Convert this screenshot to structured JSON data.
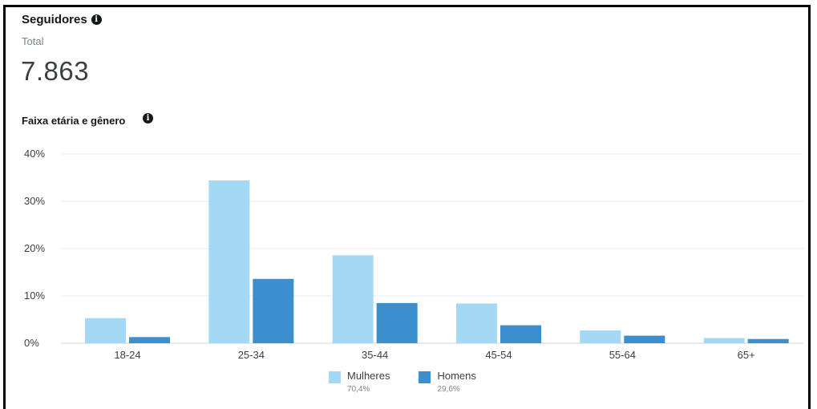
{
  "header": {
    "title": "Seguidores",
    "total_label": "Total",
    "total_value": "7.863"
  },
  "icons": {
    "info": "info-icon",
    "info_glyph": "i"
  },
  "chart_data": {
    "type": "bar",
    "title": "Faixa etária e gênero",
    "categories": [
      "18-24",
      "25-34",
      "35-44",
      "45-54",
      "55-64",
      "65+"
    ],
    "series": [
      {
        "name": "Mulheres",
        "share": "70,4%",
        "color": "#a4d9f5",
        "values": [
          5.3,
          34.4,
          18.6,
          8.4,
          2.7,
          1.1
        ]
      },
      {
        "name": "Homens",
        "share": "29,6%",
        "color": "#3b8fce",
        "values": [
          1.3,
          13.6,
          8.5,
          3.8,
          1.6,
          0.9
        ]
      }
    ],
    "ylim": [
      0,
      40
    ],
    "yticks": [
      0,
      10,
      20,
      30,
      40
    ],
    "ytick_labels": [
      "0%",
      "10%",
      "20%",
      "30%",
      "40%"
    ],
    "grid": true,
    "legend_position": "bottom-center"
  }
}
